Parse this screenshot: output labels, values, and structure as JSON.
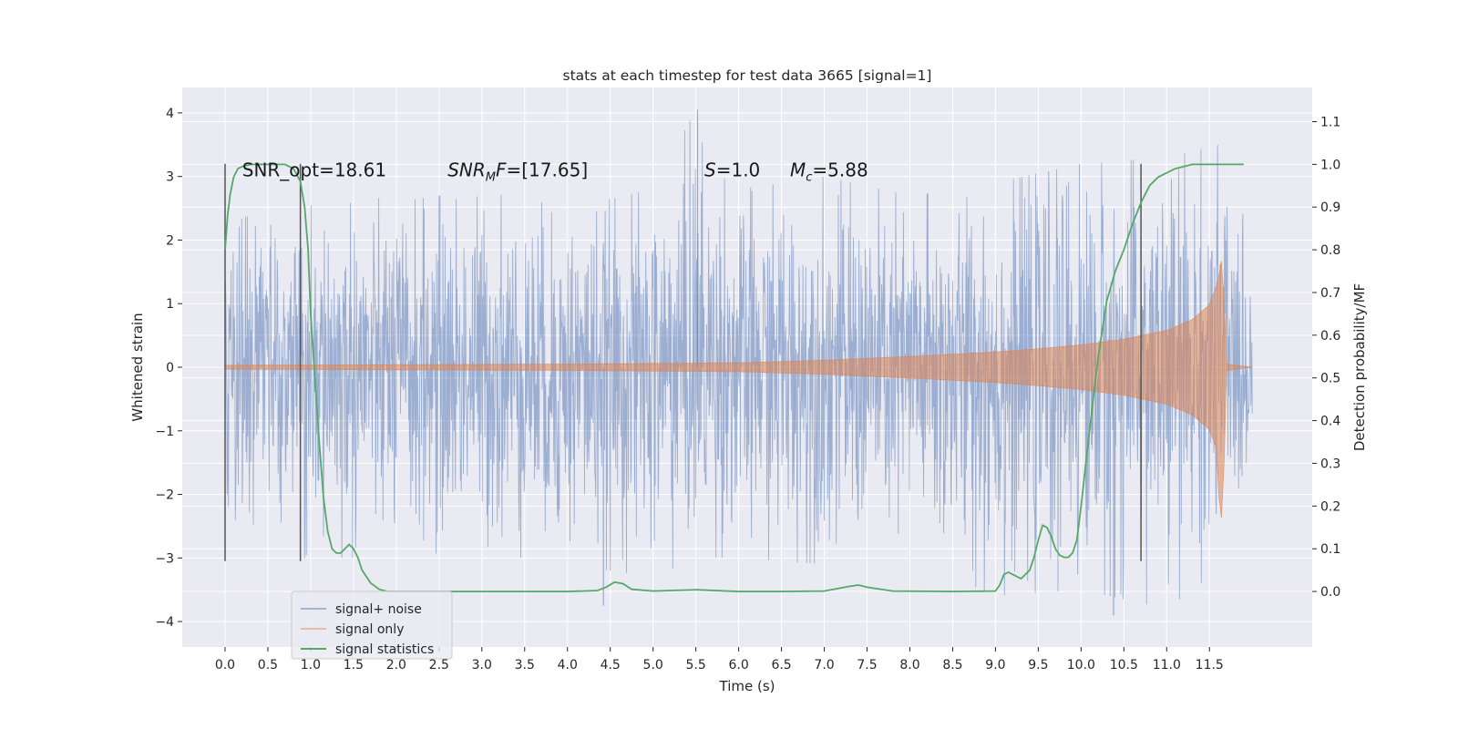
{
  "chart_data": {
    "type": "line",
    "title": "stats at each timestep for test data 3665 [signal=1]",
    "xlabel": "Time (s)",
    "ylabel": "Whitened strain",
    "y2label": "Detection probability/MF",
    "xlim": [
      -0.5,
      12.7
    ],
    "ylim": [
      -4.4,
      4.4
    ],
    "y2lim": [
      -0.13,
      1.18
    ],
    "x_ticks": [
      0.0,
      0.5,
      1.0,
      1.5,
      2.0,
      2.5,
      3.0,
      3.5,
      4.0,
      4.5,
      5.0,
      5.5,
      6.0,
      6.5,
      7.0,
      7.5,
      8.0,
      8.5,
      9.0,
      9.5,
      10.0,
      10.5,
      11.0,
      11.5
    ],
    "x_tick_labels": [
      "0.0",
      "0.5",
      "1.0",
      "1.5",
      "2.0",
      "2.5",
      "3.0",
      "3.5",
      "4.0",
      "4.5",
      "5.0",
      "5.5",
      "6.0",
      "6.5",
      "7.0",
      "7.5",
      "8.0",
      "8.5",
      "9.0",
      "9.5",
      "10.0",
      "10.5",
      "11.0",
      "11.5"
    ],
    "y_ticks": [
      -4,
      -3,
      -2,
      -1,
      0,
      1,
      2,
      3,
      4
    ],
    "y_tick_labels": [
      "−4",
      "−3",
      "−2",
      "−1",
      "0",
      "1",
      "2",
      "3",
      "4"
    ],
    "y2_ticks": [
      0.0,
      0.1,
      0.2,
      0.3,
      0.4,
      0.5,
      0.6,
      0.7,
      0.8,
      0.9,
      1.0,
      1.1
    ],
    "y2_tick_labels": [
      "0.0",
      "0.1",
      "0.2",
      "0.3",
      "0.4",
      "0.5",
      "0.6",
      "0.7",
      "0.8",
      "0.9",
      "1.0",
      "1.1"
    ],
    "grid": true,
    "legend_position": "lower-left",
    "series": [
      {
        "name": "signal+ noise",
        "color": "#4c72b0",
        "x_range": [
          0.0,
          12.0
        ],
        "envelope_x": [
          0.0,
          1.0,
          2.0,
          3.0,
          4.0,
          5.0,
          5.5,
          6.0,
          7.0,
          8.0,
          9.0,
          10.0,
          11.0,
          11.6,
          12.0
        ],
        "envelope_upper": [
          2.2,
          2.9,
          2.6,
          2.8,
          2.5,
          2.8,
          4.05,
          2.8,
          3.0,
          2.7,
          2.9,
          3.2,
          3.3,
          3.5,
          2.0
        ],
        "envelope_lower": [
          -3.1,
          -3.0,
          -3.0,
          -2.9,
          -3.1,
          -3.3,
          -3.0,
          -3.0,
          -3.1,
          -3.0,
          -3.6,
          -3.5,
          -3.8,
          -3.2,
          -1.8
        ]
      },
      {
        "name": "signal only",
        "color": "#dd8452",
        "x": [
          0.0,
          2.0,
          4.0,
          6.0,
          7.0,
          8.0,
          9.0,
          9.5,
          10.0,
          10.5,
          11.0,
          11.3,
          11.5,
          11.6,
          11.65,
          11.7,
          12.0
        ],
        "amplitude": [
          0.03,
          0.04,
          0.05,
          0.07,
          0.11,
          0.17,
          0.24,
          0.29,
          0.35,
          0.44,
          0.58,
          0.75,
          0.98,
          1.35,
          1.75,
          0.05,
          0.0
        ]
      },
      {
        "name": "signal statistics",
        "color": "#55a868",
        "x": [
          0.0,
          0.03,
          0.06,
          0.1,
          0.15,
          0.2,
          0.3,
          0.5,
          0.7,
          0.8,
          0.88,
          0.93,
          0.97,
          1.0,
          1.05,
          1.1,
          1.15,
          1.2,
          1.25,
          1.3,
          1.35,
          1.4,
          1.45,
          1.5,
          1.55,
          1.6,
          1.7,
          1.8,
          1.9,
          2.0,
          3.0,
          4.0,
          4.35,
          4.45,
          4.55,
          4.65,
          4.75,
          5.0,
          5.5,
          6.0,
          6.5,
          7.0,
          7.3,
          7.4,
          7.5,
          7.8,
          8.5,
          9.0,
          9.05,
          9.1,
          9.15,
          9.2,
          9.3,
          9.4,
          9.45,
          9.5,
          9.55,
          9.6,
          9.65,
          9.7,
          9.75,
          9.8,
          9.85,
          9.9,
          9.95,
          10.0,
          10.1,
          10.2,
          10.3,
          10.4,
          10.5,
          10.6,
          10.7,
          10.8,
          10.9,
          11.0,
          11.1,
          11.2,
          11.3,
          11.5,
          11.7,
          11.9
        ],
        "y": [
          0.8,
          0.88,
          0.93,
          0.97,
          0.99,
          0.995,
          1.0,
          1.0,
          1.0,
          0.99,
          0.96,
          0.9,
          0.8,
          0.65,
          0.5,
          0.35,
          0.22,
          0.14,
          0.1,
          0.09,
          0.09,
          0.1,
          0.11,
          0.1,
          0.08,
          0.05,
          0.02,
          0.005,
          0.0,
          0.0,
          0.0,
          0.0,
          0.002,
          0.01,
          0.022,
          0.018,
          0.005,
          0.001,
          0.004,
          0.0,
          0.0,
          0.001,
          0.012,
          0.015,
          0.01,
          0.001,
          0.0,
          0.001,
          0.015,
          0.04,
          0.045,
          0.04,
          0.03,
          0.05,
          0.08,
          0.12,
          0.155,
          0.15,
          0.13,
          0.1,
          0.085,
          0.08,
          0.08,
          0.09,
          0.12,
          0.2,
          0.38,
          0.55,
          0.68,
          0.75,
          0.8,
          0.86,
          0.91,
          0.95,
          0.97,
          0.98,
          0.99,
          0.995,
          1.0,
          1.0,
          1.0,
          1.0
        ]
      }
    ],
    "vertical_lines": [
      {
        "x": 0.0,
        "y_from": -3.05,
        "y_to": 3.2
      },
      {
        "x": 0.88,
        "y_from": -3.05,
        "y_to": 3.2
      },
      {
        "x": 10.7,
        "y_from": -3.05,
        "y_to": 3.2
      }
    ],
    "annotations": [
      {
        "x": 0.2,
        "y": 3.1,
        "parts": [
          {
            "t": "SNR_opt=18.61"
          }
        ]
      },
      {
        "x": 2.6,
        "y": 3.1,
        "parts": [
          {
            "t": "SNR",
            "i": true
          },
          {
            "t": "M",
            "i": true,
            "sub": true
          },
          {
            "t": "F",
            "i": true
          },
          {
            "t": "=[17.65]"
          }
        ]
      },
      {
        "x": 5.6,
        "y": 3.1,
        "parts": [
          {
            "t": "S",
            "i": true
          },
          {
            "t": "=1.0"
          }
        ]
      },
      {
        "x": 6.6,
        "y": 3.1,
        "parts": [
          {
            "t": "M",
            "i": true
          },
          {
            "t": "c",
            "i": true,
            "sub": true
          },
          {
            "t": "=5.88"
          }
        ]
      }
    ]
  }
}
